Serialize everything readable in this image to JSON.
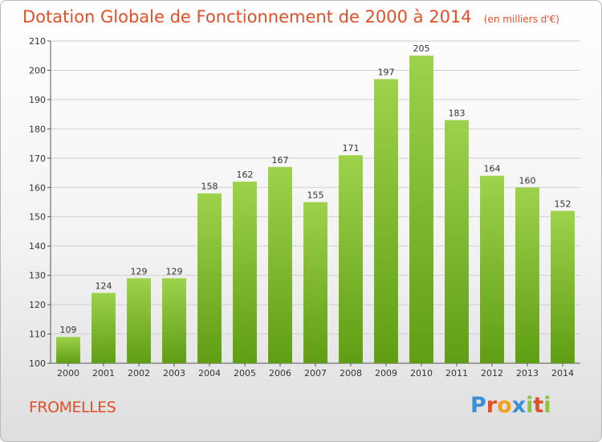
{
  "title": "Dotation Globale de Fonctionnement de 2000 à 2014",
  "unit_note": "(en milliers d'€)",
  "commune": "FROMELLES",
  "logo": {
    "letters": [
      "P",
      "r",
      "o",
      "x",
      "i",
      "t",
      "i"
    ],
    "colors": [
      "#3a8fd6",
      "#e0502a",
      "#f2a21a",
      "#3a8fd6",
      "#8cc43a",
      "#e0502a",
      "#8cc43a"
    ]
  },
  "colors": {
    "bar_top": "#9ed24c",
    "bar_bottom": "#5f9e14",
    "title": "#e0502a",
    "grid": "#d0d0d0"
  },
  "chart_data": {
    "type": "bar",
    "categories": [
      "2000",
      "2001",
      "2002",
      "2003",
      "2004",
      "2005",
      "2006",
      "2007",
      "2008",
      "2009",
      "2010",
      "2011",
      "2012",
      "2013",
      "2014"
    ],
    "values": [
      109,
      124,
      129,
      129,
      158,
      162,
      167,
      155,
      171,
      197,
      205,
      183,
      164,
      160,
      152
    ],
    "ylim": [
      100,
      210
    ],
    "yticks": [
      100,
      110,
      120,
      130,
      140,
      150,
      160,
      170,
      180,
      190,
      200,
      210
    ],
    "grid": true,
    "xlabel": "",
    "ylabel": ""
  }
}
